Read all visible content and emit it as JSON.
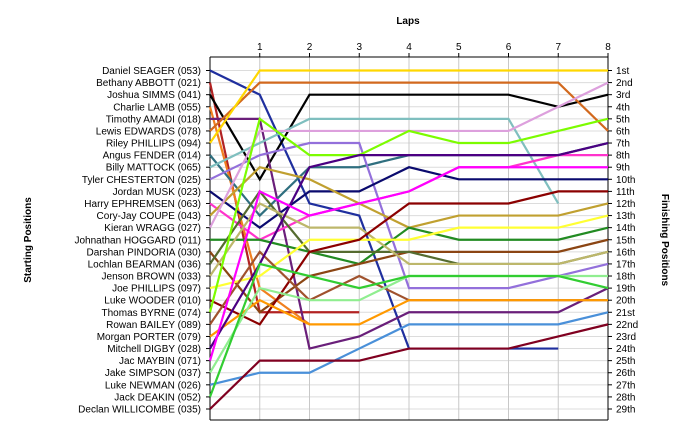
{
  "chart_data": {
    "type": "line",
    "title": "",
    "xlabel": "Laps",
    "ylabel_left": "Starting Positions",
    "ylabel_right": "Finishing Positions",
    "laps": [
      0,
      1,
      2,
      3,
      4,
      5,
      6,
      7,
      8
    ],
    "lap_tick_labels": [
      "1",
      "2",
      "3",
      "4",
      "5",
      "6",
      "7",
      "8"
    ],
    "y_range": [
      1,
      29
    ],
    "grid": true,
    "finishing_labels": [
      "1st",
      "2nd",
      "3rd",
      "4th",
      "5th",
      "6th",
      "7th",
      "8th",
      "9th",
      "10th",
      "11th",
      "12th",
      "13th",
      "14th",
      "15th",
      "16th",
      "17th",
      "18th",
      "19th",
      "20th",
      "21st",
      "22nd",
      "23rd",
      "24th",
      "25th",
      "26th",
      "27th",
      "28th",
      "29th"
    ],
    "series": [
      {
        "name": "Daniel SEAGER (053)",
        "color": "#1f2f9e",
        "positions": [
          1,
          3,
          12,
          13,
          24,
          24,
          24,
          24
        ]
      },
      {
        "name": "Bethany ABBOTT (021)",
        "color": "#b22222",
        "positions": [
          2,
          21,
          21,
          21
        ]
      },
      {
        "name": "Joshua SIMMS (041)",
        "color": "#000000",
        "positions": [
          3,
          10,
          3,
          3,
          3,
          3,
          3,
          4,
          3
        ]
      },
      {
        "name": "Charlie LAMB (055)",
        "color": "#f08020",
        "positions": [
          4,
          19,
          22
        ]
      },
      {
        "name": "Timothy AMADI (018)",
        "color": "#6a1f7a",
        "positions": [
          5,
          5,
          24,
          23,
          21,
          21,
          21,
          21,
          19
        ]
      },
      {
        "name": "Lewis EDWARDS (078)",
        "color": "#d2691e",
        "positions": [
          6,
          2,
          2,
          2,
          2,
          2,
          2,
          2,
          6
        ]
      },
      {
        "name": "Riley PHILLIPS (094)",
        "color": "#ffd700",
        "positions": [
          7,
          1,
          1,
          1,
          1,
          1,
          1,
          1,
          1
        ]
      },
      {
        "name": "Angus FENDER (014)",
        "color": "#2f6f7f",
        "positions": [
          8,
          13,
          9,
          9,
          8,
          8,
          8,
          8,
          7
        ]
      },
      {
        "name": "Billy MATTOCK (065)",
        "color": "#7fbfbf",
        "positions": [
          9,
          7,
          5,
          5,
          5,
          5,
          5,
          12
        ]
      },
      {
        "name": "Tyler CHESTERTON (025)",
        "color": "#9370db",
        "positions": [
          10,
          8,
          7,
          7,
          19,
          19,
          19,
          18,
          17
        ]
      },
      {
        "name": "Jordan MUSK (023)",
        "color": "#0a0a6e",
        "positions": [
          11,
          14,
          11,
          11,
          9,
          10,
          10,
          10,
          10
        ]
      },
      {
        "name": "Harry EPHREMSEN (063)",
        "color": "#ff33cc",
        "positions": [
          12,
          15,
          13,
          12,
          11,
          9,
          9,
          8,
          8
        ]
      },
      {
        "name": "Cory-Jay COUPE (043)",
        "color": "#c0a030",
        "positions": [
          13,
          9,
          10,
          12,
          14,
          13,
          13,
          13,
          12
        ]
      },
      {
        "name": "Kieran WRAGG (027)",
        "color": "#dda0dd",
        "positions": [
          14,
          6,
          6,
          6,
          6,
          6,
          6,
          4,
          2
        ]
      },
      {
        "name": "Johnathan HOGGARD (011)",
        "color": "#228b22",
        "positions": [
          15,
          15,
          16,
          17,
          14,
          15,
          15,
          15,
          14
        ]
      },
      {
        "name": "Darshan PINDORIA (030)",
        "color": "#8b4513",
        "positions": [
          16,
          21,
          18,
          17,
          16,
          16,
          16,
          16,
          15
        ]
      },
      {
        "name": "Lochlan BEARMAN (036)",
        "color": "#556b2f",
        "positions": [
          17,
          11,
          16,
          16,
          16,
          17,
          17,
          17,
          16
        ]
      },
      {
        "name": "Jenson BROWN (033)",
        "color": "#bdb76b",
        "positions": [
          18,
          12,
          14,
          14,
          17,
          17,
          17,
          17,
          16
        ]
      },
      {
        "name": "Joe PHILLIPS (097)",
        "color": "#ffff33",
        "positions": [
          19,
          18,
          15,
          15,
          15,
          14,
          14,
          14,
          13
        ]
      },
      {
        "name": "Luke WOODER (010)",
        "color": "#8b0000",
        "positions": [
          20,
          22,
          16,
          15,
          12,
          12,
          12,
          11,
          11
        ]
      },
      {
        "name": "Thomas BYRNE (074)",
        "color": "#7cfc00",
        "positions": [
          21,
          5,
          8,
          8,
          6,
          7,
          7,
          6,
          5
        ]
      },
      {
        "name": "Rowan BAILEY (089)",
        "color": "#a0522d",
        "positions": [
          22,
          16,
          20,
          18,
          20,
          20,
          20,
          20,
          20
        ]
      },
      {
        "name": "Morgan PORTER (079)",
        "color": "#ff9900",
        "positions": [
          23,
          20,
          22,
          22,
          20,
          20,
          20,
          20,
          20
        ]
      },
      {
        "name": "Mitchell DIGBY (028)",
        "color": "#4b0082",
        "positions": [
          24,
          17,
          9,
          8,
          8,
          8,
          8,
          8,
          7
        ]
      },
      {
        "name": "Jac MAYBIN (071)",
        "color": "#ff00ff",
        "positions": [
          25,
          11,
          13,
          12,
          11,
          9,
          9,
          9,
          9
        ]
      },
      {
        "name": "Jake SIMPSON (037)",
        "color": "#90ee90",
        "positions": [
          26,
          19,
          20,
          20,
          18,
          18,
          18,
          18,
          18
        ]
      },
      {
        "name": "Luke NEWMAN (026)",
        "color": "#4a90d9",
        "positions": [
          27,
          26,
          26,
          24,
          22,
          22,
          22,
          22,
          21
        ]
      },
      {
        "name": "Jack DEAKIN (052)",
        "color": "#32cd32",
        "positions": [
          28,
          17,
          18,
          19,
          18,
          18,
          18,
          18,
          19
        ]
      },
      {
        "name": "Declan WILLICOMBE (035)",
        "color": "#800020",
        "positions": [
          29,
          25,
          25,
          25,
          24,
          24,
          24,
          23,
          22
        ]
      }
    ]
  }
}
